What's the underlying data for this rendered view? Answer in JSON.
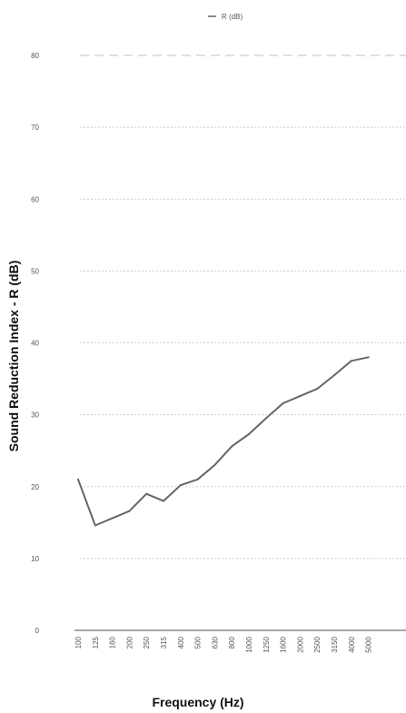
{
  "chart_data": {
    "type": "line",
    "xlabel": "Frequency (Hz)",
    "ylabel": "Sound Reduction Index - R (dB)",
    "categories": [
      "100",
      "125",
      "160",
      "200",
      "250",
      "315",
      "400",
      "500",
      "630",
      "800",
      "1000",
      "1250",
      "1600",
      "2000",
      "2500",
      "3150",
      "4000",
      "5000"
    ],
    "series": [
      {
        "name": "R (dB)",
        "color": "#666666",
        "values": [
          21,
          14.6,
          15.6,
          16.6,
          19,
          18,
          20.2,
          21,
          23,
          25.6,
          27.3,
          29.5,
          31.6,
          32.6,
          33.6,
          35.5,
          37.5,
          38
        ]
      }
    ],
    "ylim": [
      0,
      80
    ],
    "yticks": [
      "0",
      "10",
      "20",
      "30",
      "40",
      "50",
      "60",
      "70",
      "80"
    ],
    "grid": true,
    "legend": "top-center"
  }
}
